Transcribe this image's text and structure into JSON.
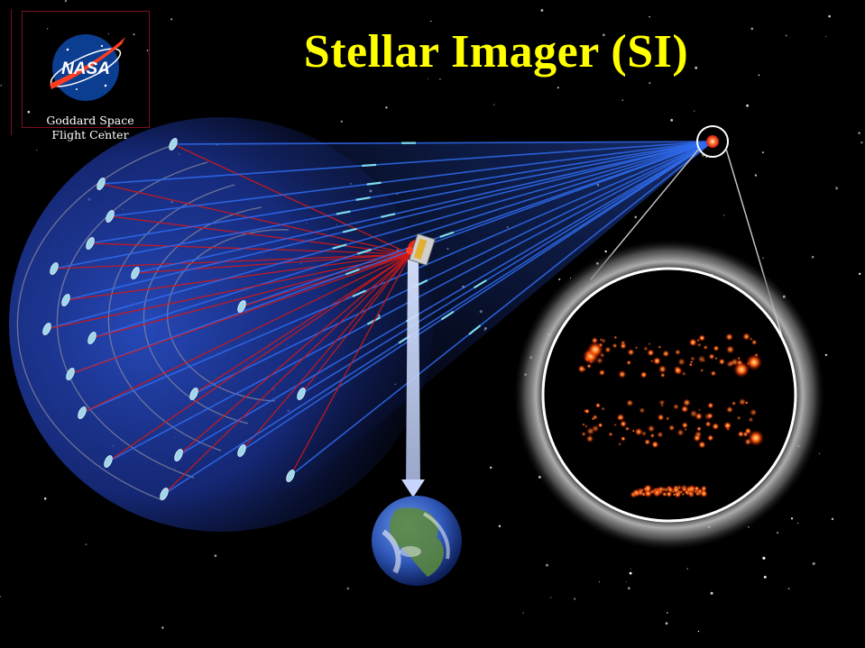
{
  "title": "Stellar Imager (SI)",
  "logo": {
    "text": "NASA",
    "caption_line1": "Goddard Space",
    "caption_line2": "Flight Center"
  },
  "colors": {
    "title": "#ffff00",
    "background": "#000000",
    "incoming_beams": "#2f6cf0",
    "beam_arrows": "#7fdcf0",
    "reflected_beams": "#d01818",
    "nasa_blue": "#0b3d91",
    "nasa_red": "#fc3d21"
  },
  "icons": [
    "nasa-meatball-logo",
    "star-target",
    "hub-spacecraft",
    "earth-globe",
    "mirror-satellite"
  ]
}
